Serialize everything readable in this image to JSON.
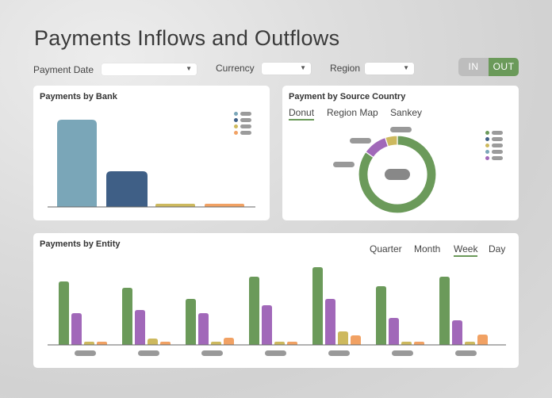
{
  "header": {
    "title": "Payments Inflows and Outflows"
  },
  "filters": {
    "payment_date_label": "Payment Date",
    "currency_label": "Currency",
    "region_label": "Region"
  },
  "toggle": {
    "in_label": "IN",
    "out_label": "OUT",
    "selected": "OUT"
  },
  "bank_card": {
    "title": "Payments by Bank",
    "legend_colors": [
      "#7aa6b8",
      "#3f5f86",
      "#cdb95e",
      "#f1a163"
    ]
  },
  "country_card": {
    "title": "Payment by Source Country",
    "tabs": [
      "Donut",
      "Region Map",
      "Sankey"
    ],
    "active_tab": "Donut",
    "legend_colors": [
      "#6b9a5a",
      "#3f5f86",
      "#cdb95e",
      "#7aa6b8",
      "#a168b9"
    ]
  },
  "entity_card": {
    "title": "Payments by Entity",
    "tabs": [
      "Quarter",
      "Month",
      "Week",
      "Day"
    ],
    "active_tab": "Week"
  },
  "colors": {
    "green": "#6b9a5a",
    "purple": "#a168b9",
    "yellow": "#cdb95e",
    "orange": "#f1a163",
    "blue_light": "#7aa6b8",
    "blue_dark": "#3f5f86"
  },
  "chart_data": [
    {
      "type": "bar",
      "name": "bank",
      "categories": [
        "",
        "",
        "",
        ""
      ],
      "values": [
        110,
        45,
        4,
        4
      ],
      "colors": [
        "#7aa6b8",
        "#3f5f86",
        "#cdb95e",
        "#f1a163"
      ],
      "ylim": [
        0,
        115
      ]
    },
    {
      "type": "pie",
      "name": "country",
      "donut": true,
      "values": [
        84,
        10,
        5
      ],
      "colors": [
        "#6b9a5a",
        "#a168b9",
        "#cdb95e"
      ]
    },
    {
      "type": "bar",
      "name": "entity",
      "categories": [
        "",
        "",
        "",
        "",
        "",
        "",
        ""
      ],
      "series": [
        {
          "values": [
            80,
            72,
            58,
            86,
            98,
            74,
            86
          ],
          "color": "#6b9a5a"
        },
        {
          "values": [
            40,
            44,
            40,
            50,
            58,
            34,
            31
          ],
          "color": "#a168b9"
        },
        {
          "values": [
            4,
            8,
            4,
            4,
            17,
            4,
            4
          ],
          "color": "#cdb95e"
        },
        {
          "values": [
            4,
            4,
            9,
            4,
            12,
            4,
            13
          ],
          "color": "#f1a163"
        }
      ],
      "ylim": [
        0,
        100
      ]
    }
  ]
}
